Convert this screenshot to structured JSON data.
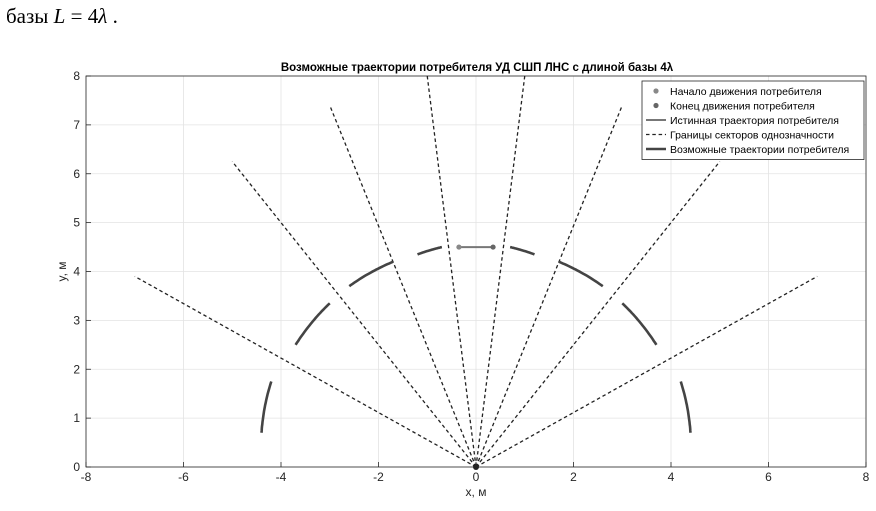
{
  "lead_text": {
    "word": "базы",
    "formula": "L = 4λ .",
    "formula_prefix": "L",
    "formula_eq": " = 4",
    "formula_lambda": "λ",
    "formula_end": " ."
  },
  "chart_data": {
    "type": "line",
    "title": "Возможные траектории потребителя УД СШП ЛНС с длиной базы 4λ",
    "xlabel": "x, м",
    "ylabel": "y, м",
    "xlim": [
      -8,
      8
    ],
    "ylim": [
      0,
      8
    ],
    "xticks": [
      -8,
      -6,
      -4,
      -2,
      0,
      2,
      4,
      6,
      8
    ],
    "yticks": [
      0,
      1,
      2,
      3,
      4,
      5,
      6,
      7,
      8
    ],
    "grid": true,
    "legend_position": "top-right",
    "colors": {
      "start": "#888888",
      "end": "#666666",
      "true_path": "#777777",
      "sector_bounds": "#222222",
      "possible": "#444444",
      "grid": "#e3e3e3"
    },
    "series": [
      {
        "name": "Начало движения потребителя",
        "kind": "point",
        "points": [
          [
            -0.35,
            4.5
          ]
        ]
      },
      {
        "name": "Конец движения потребителя",
        "kind": "point",
        "points": [
          [
            0.35,
            4.5
          ]
        ]
      },
      {
        "name": "Истинная траектория потребителя",
        "kind": "line",
        "points": [
          [
            -0.35,
            4.5
          ],
          [
            0.35,
            4.5
          ]
        ]
      },
      {
        "name": "Границы секторов однозначности",
        "kind": "dashed",
        "segments": [
          [
            [
              0,
              0
            ],
            [
              -7.0,
              3.9
            ]
          ],
          [
            [
              0,
              0
            ],
            [
              -5.0,
              6.25
            ]
          ],
          [
            [
              0,
              0
            ],
            [
              -3.0,
              7.4
            ]
          ],
          [
            [
              0,
              0
            ],
            [
              -1.0,
              8.0
            ]
          ],
          [
            [
              0,
              0
            ],
            [
              1.0,
              8.0
            ]
          ],
          [
            [
              0,
              0
            ],
            [
              3.0,
              7.4
            ]
          ],
          [
            [
              0,
              0
            ],
            [
              5.0,
              6.25
            ]
          ],
          [
            [
              0,
              0
            ],
            [
              7.0,
              3.9
            ]
          ]
        ]
      },
      {
        "name": "Возможные траектории потребителя",
        "kind": "arcs",
        "arcs": [
          [
            [
              -4.4,
              0.7
            ],
            [
              -4.2,
              1.75
            ]
          ],
          [
            [
              -3.7,
              2.5
            ],
            [
              -3.0,
              3.35
            ]
          ],
          [
            [
              -2.6,
              3.7
            ],
            [
              -1.7,
              4.2
            ]
          ],
          [
            [
              -1.2,
              4.35
            ],
            [
              -0.7,
              4.5
            ]
          ],
          [
            [
              0.7,
              4.5
            ],
            [
              1.2,
              4.35
            ]
          ],
          [
            [
              1.7,
              4.2
            ],
            [
              2.6,
              3.7
            ]
          ],
          [
            [
              3.0,
              3.35
            ],
            [
              3.7,
              2.5
            ]
          ],
          [
            [
              4.2,
              1.75
            ],
            [
              4.4,
              0.7
            ]
          ]
        ]
      }
    ]
  }
}
